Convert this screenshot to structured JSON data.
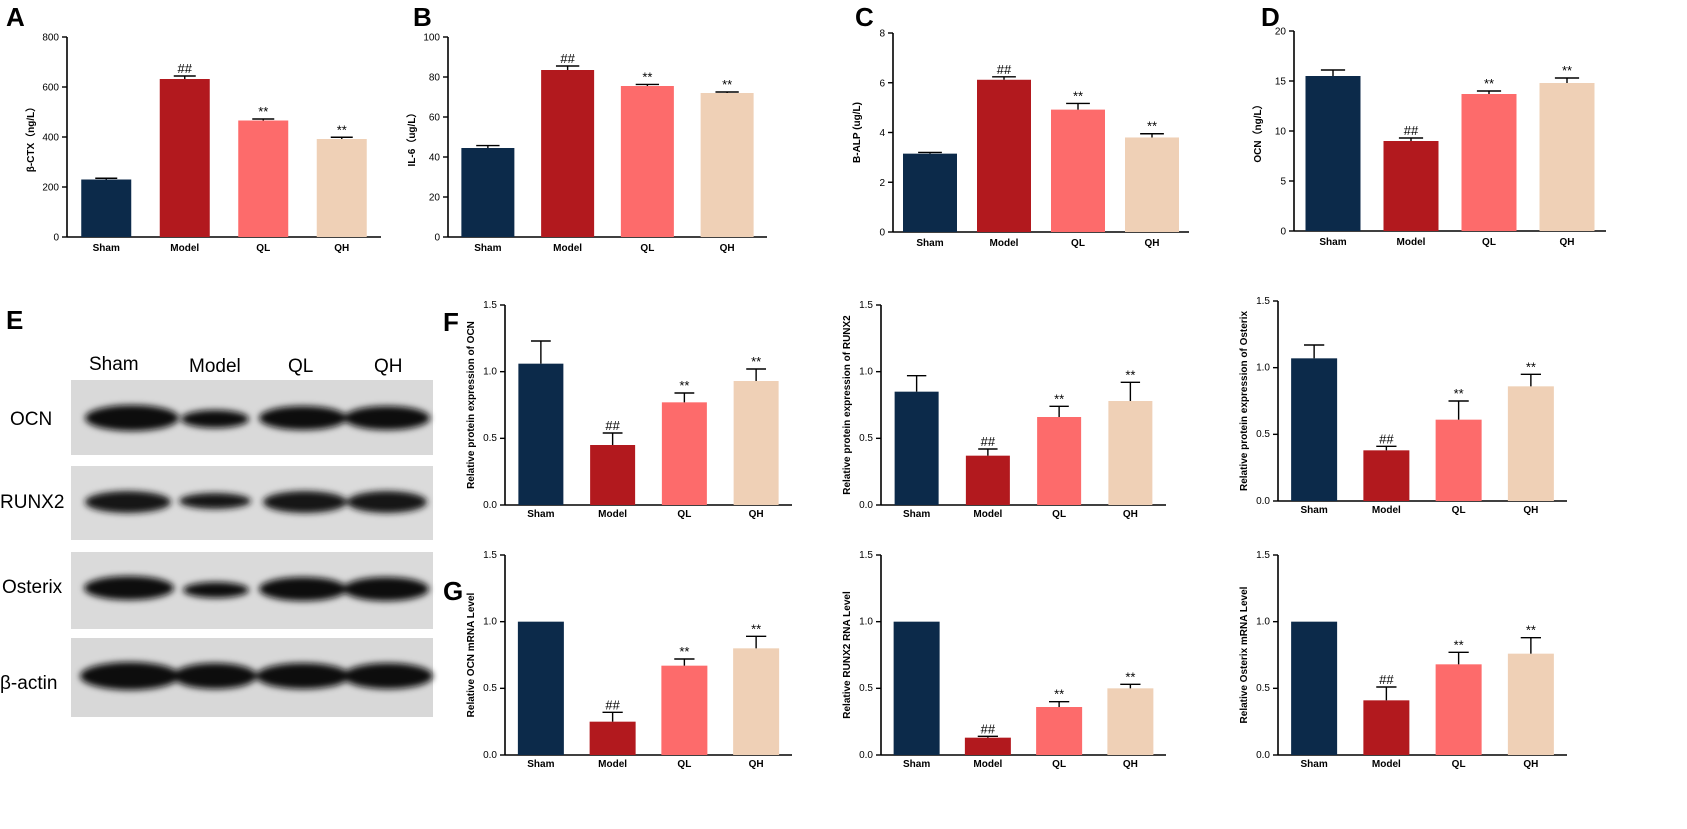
{
  "panel_letters": {
    "A": "A",
    "B": "B",
    "C": "C",
    "D": "D",
    "E": "E",
    "F": "F",
    "G": "G"
  },
  "colors": {
    "Sham": "#0c2a4a",
    "Model": "#b2191e",
    "QL": "#fd6b6b",
    "QH": "#efd0b6"
  },
  "blot": {
    "column_labels": [
      "Sham",
      "Model",
      "QL",
      "QH"
    ],
    "row_labels": [
      "OCN",
      "RUNX2",
      "Osterix",
      "β-actin"
    ]
  },
  "chart_data": [
    {
      "id": "A",
      "type": "bar",
      "ylabel": "β-CTX（ng/L）",
      "categories": [
        "Sham",
        "Model",
        "QL",
        "QH"
      ],
      "values": [
        230,
        632,
        466,
        392
      ],
      "errors": [
        5,
        12,
        6,
        7
      ],
      "ylim": [
        0,
        800
      ],
      "yticks": [
        0,
        200,
        400,
        600,
        800
      ],
      "tick_labels": [
        "0",
        "200",
        "400",
        "600",
        "800"
      ],
      "significance": [
        "",
        "##",
        "**",
        "**"
      ]
    },
    {
      "id": "B",
      "type": "bar",
      "ylabel": "IL-6（ug/L）",
      "categories": [
        "Sham",
        "Model",
        "QL",
        "QH"
      ],
      "values": [
        44.5,
        83.5,
        75.5,
        72
      ],
      "errors": [
        1.2,
        2,
        0.8,
        0.5
      ],
      "ylim": [
        0,
        100
      ],
      "yticks": [
        0,
        20,
        40,
        60,
        80,
        100
      ],
      "tick_labels": [
        "0",
        "20",
        "40",
        "60",
        "80",
        "100"
      ],
      "significance": [
        "",
        "##",
        "**",
        "**"
      ]
    },
    {
      "id": "C",
      "type": "bar",
      "ylabel": "B-ALP (ug/L)",
      "categories": [
        "Sham",
        "Model",
        "QL",
        "QH"
      ],
      "values": [
        3.15,
        6.12,
        4.92,
        3.8
      ],
      "errors": [
        0.05,
        0.12,
        0.25,
        0.15
      ],
      "ylim": [
        0,
        8
      ],
      "yticks": [
        0,
        2,
        4,
        6,
        8
      ],
      "tick_labels": [
        "0",
        "2",
        "4",
        "6",
        "8"
      ],
      "significance": [
        "",
        "##",
        "**",
        "**"
      ]
    },
    {
      "id": "D",
      "type": "bar",
      "ylabel": "OCN（ng/L）",
      "categories": [
        "Sham",
        "Model",
        "QL",
        "QH"
      ],
      "values": [
        15.5,
        9.0,
        13.7,
        14.8
      ],
      "errors": [
        0.6,
        0.3,
        0.3,
        0.5
      ],
      "ylim": [
        0,
        20
      ],
      "yticks": [
        0,
        5,
        10,
        15,
        20
      ],
      "tick_labels": [
        "0",
        "5",
        "10",
        "15",
        "20"
      ],
      "significance": [
        "",
        "##",
        "**",
        "**"
      ]
    },
    {
      "id": "F1",
      "type": "bar",
      "ylabel": "Relative protein expression of OCN",
      "categories": [
        "Sham",
        "Model",
        "QL",
        "QH"
      ],
      "values": [
        1.06,
        0.45,
        0.77,
        0.93
      ],
      "errors": [
        0.17,
        0.09,
        0.07,
        0.09
      ],
      "ylim": [
        0,
        1.5
      ],
      "yticks": [
        0,
        0.5,
        1.0,
        1.5
      ],
      "tick_labels": [
        "0.0",
        "0.5",
        "1.0",
        "1.5"
      ],
      "significance": [
        "",
        "##",
        "**",
        "**"
      ]
    },
    {
      "id": "F2",
      "type": "bar",
      "ylabel": "Relative protein expression of RUNX2",
      "categories": [
        "Sham",
        "Model",
        "QL",
        "QH"
      ],
      "values": [
        0.85,
        0.37,
        0.66,
        0.78
      ],
      "errors": [
        0.12,
        0.05,
        0.08,
        0.14
      ],
      "ylim": [
        0,
        1.5
      ],
      "yticks": [
        0,
        0.5,
        1.0,
        1.5
      ],
      "tick_labels": [
        "0.0",
        "0.5",
        "1.0",
        "1.5"
      ],
      "significance": [
        "",
        "##",
        "**",
        "**"
      ]
    },
    {
      "id": "F3",
      "type": "bar",
      "ylabel": "Relative protein expression of Osterix",
      "categories": [
        "Sham",
        "Model",
        "QL",
        "QH"
      ],
      "values": [
        1.07,
        0.38,
        0.61,
        0.86
      ],
      "errors": [
        0.1,
        0.03,
        0.14,
        0.09
      ],
      "ylim": [
        0,
        1.5
      ],
      "yticks": [
        0,
        0.5,
        1.0,
        1.5
      ],
      "tick_labels": [
        "0.0",
        "0.5",
        "1.0",
        "1.5"
      ],
      "significance": [
        "",
        "##",
        "**",
        "**"
      ]
    },
    {
      "id": "G1",
      "type": "bar",
      "ylabel": "Relative OCN mRNA Level",
      "categories": [
        "Sham",
        "Model",
        "QL",
        "QH"
      ],
      "values": [
        1.0,
        0.25,
        0.67,
        0.8
      ],
      "errors": [
        0,
        0.07,
        0.05,
        0.09
      ],
      "ylim": [
        0,
        1.5
      ],
      "yticks": [
        0,
        0.5,
        1.0,
        1.5
      ],
      "tick_labels": [
        "0.0",
        "0.5",
        "1.0",
        "1.5"
      ],
      "significance": [
        "",
        "##",
        "**",
        "**"
      ]
    },
    {
      "id": "G2",
      "type": "bar",
      "ylabel": "Relative RUNX2 RNA Level",
      "categories": [
        "Sham",
        "Model",
        "QL",
        "QH"
      ],
      "values": [
        1.0,
        0.13,
        0.36,
        0.5
      ],
      "errors": [
        0,
        0.01,
        0.04,
        0.03
      ],
      "ylim": [
        0,
        1.5
      ],
      "yticks": [
        0,
        0.5,
        1.0,
        1.5
      ],
      "tick_labels": [
        "0.0",
        "0.5",
        "1.0",
        "1.5"
      ],
      "significance": [
        "",
        "##",
        "**",
        "**"
      ]
    },
    {
      "id": "G3",
      "type": "bar",
      "ylabel": "Relative Osterix mRNA Level",
      "categories": [
        "Sham",
        "Model",
        "QL",
        "QH"
      ],
      "values": [
        1.0,
        0.41,
        0.68,
        0.76
      ],
      "errors": [
        0,
        0.1,
        0.09,
        0.12
      ],
      "ylim": [
        0,
        1.5
      ],
      "yticks": [
        0,
        0.5,
        1.0,
        1.5
      ],
      "tick_labels": [
        "0.0",
        "0.5",
        "1.0",
        "1.5"
      ],
      "significance": [
        "",
        "##",
        "**",
        "**"
      ]
    }
  ]
}
